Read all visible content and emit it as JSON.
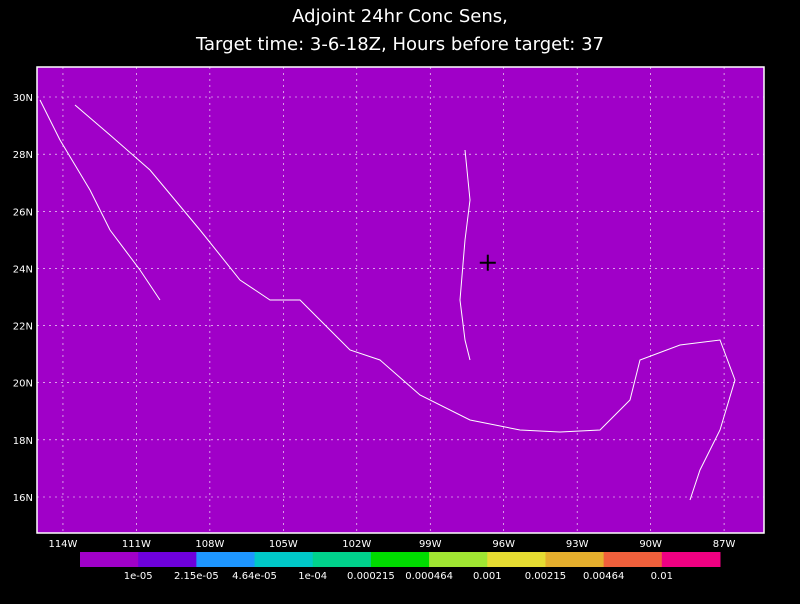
{
  "title": [
    "Adjoint 24hr Conc Sens,",
    "Target time: 3-6-18Z, Hours before target: 37"
  ],
  "map": {
    "background": "#a000c8",
    "xlim": [
      -115.06,
      -85.37
    ],
    "ylim": [
      14.74,
      31.05
    ],
    "grid": true,
    "xticks": [
      {
        "value": -114,
        "label": "114W"
      },
      {
        "value": -111,
        "label": "111W"
      },
      {
        "value": -108,
        "label": "108W"
      },
      {
        "value": -105,
        "label": "105W"
      },
      {
        "value": -102,
        "label": "102W"
      },
      {
        "value": -99,
        "label": "99W"
      },
      {
        "value": -96,
        "label": "96W"
      },
      {
        "value": -93,
        "label": "93W"
      },
      {
        "value": -90,
        "label": "90W"
      },
      {
        "value": -87,
        "label": "87W"
      }
    ],
    "yticks": [
      {
        "value": 16,
        "label": "16N"
      },
      {
        "value": 18,
        "label": "18N"
      },
      {
        "value": 20,
        "label": "20N"
      },
      {
        "value": 22,
        "label": "22N"
      },
      {
        "value": 24,
        "label": "24N"
      },
      {
        "value": 26,
        "label": "26N"
      },
      {
        "value": 28,
        "label": "28N"
      },
      {
        "value": 30,
        "label": "30N"
      }
    ],
    "target": {
      "lon": -96.65,
      "lat": 24.2
    }
  },
  "colorbar": {
    "colors": [
      "#a000c8",
      "#6e00dc",
      "#1e96ff",
      "#00c8c8",
      "#00d28c",
      "#00dc00",
      "#a0e632",
      "#e6dc32",
      "#e6af2d",
      "#f0603c",
      "#f00082"
    ],
    "labels": [
      "1e-05",
      "2.15e-05",
      "4.64e-05",
      "1e-04",
      "0.000215",
      "0.000464",
      "0.001",
      "0.00215",
      "0.00464",
      "0.01"
    ]
  }
}
